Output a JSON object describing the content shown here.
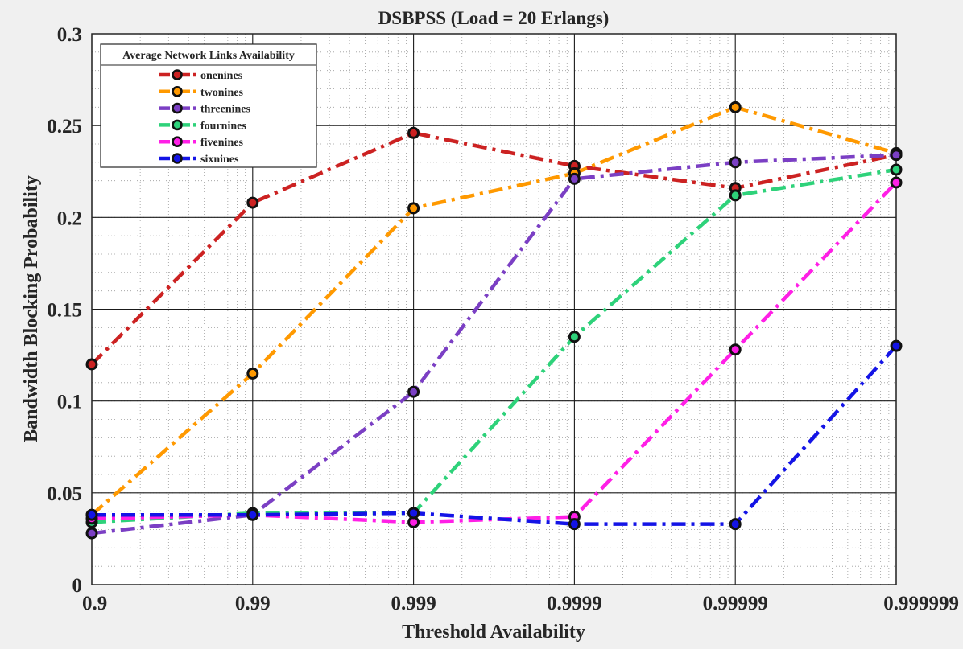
{
  "chart_data": {
    "type": "line",
    "title": "DSBPSS (Load  = 20 Erlangs)",
    "xlabel": "Threshold Availability",
    "ylabel": "Bandwidth Blocking Probability",
    "x_scale": "log",
    "x": [
      0.9,
      0.99,
      0.999,
      0.9999,
      0.99999,
      0.999999
    ],
    "x_tick_labels": [
      "0.9",
      "0.99",
      "0.999",
      "0.9999",
      "0.99999",
      "0.999999"
    ],
    "ylim": [
      0,
      0.3
    ],
    "y_ticks": [
      0,
      0.05,
      0.1,
      0.15,
      0.2,
      0.25,
      0.3
    ],
    "y_tick_labels": [
      "0",
      "0.05",
      "0.1",
      "0.15",
      "0.2",
      "0.25",
      "0.3"
    ],
    "grid": true,
    "minor_grid": true,
    "legend": {
      "title": "Average Network Links Availability",
      "placement": "top-left"
    },
    "series": [
      {
        "name": "onenines",
        "color": "#cc2222",
        "values": [
          0.12,
          0.208,
          0.246,
          0.228,
          0.216,
          0.234
        ]
      },
      {
        "name": "twonines",
        "color": "#ff9900",
        "values": [
          0.038,
          0.115,
          0.205,
          0.224,
          0.26,
          0.235
        ]
      },
      {
        "name": "threenines",
        "color": "#7b3fc4",
        "values": [
          0.028,
          0.038,
          0.105,
          0.221,
          0.23,
          0.234
        ]
      },
      {
        "name": "fournines",
        "color": "#2ed27a",
        "values": [
          0.034,
          0.039,
          0.039,
          0.135,
          0.212,
          0.226
        ]
      },
      {
        "name": "fivenines",
        "color": "#ff1fe6",
        "values": [
          0.036,
          0.038,
          0.034,
          0.037,
          0.128,
          0.219
        ]
      },
      {
        "name": "sixnines",
        "color": "#1414e6",
        "values": [
          0.038,
          0.038,
          0.039,
          0.033,
          0.033,
          0.13
        ]
      }
    ]
  }
}
